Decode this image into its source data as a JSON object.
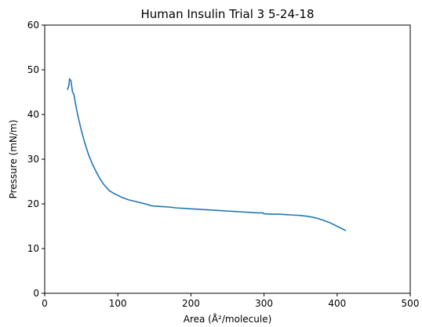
{
  "chart_data": {
    "type": "line",
    "title": "Human Insulin Trial 3 5-24-18",
    "xlabel": "Area (Å²/molecule)",
    "ylabel": "Pressure (mN/m)",
    "xlim": [
      0,
      500
    ],
    "ylim": [
      0,
      60
    ],
    "xticks": [
      0,
      100,
      200,
      300,
      400,
      500
    ],
    "yticks": [
      0,
      10,
      20,
      30,
      40,
      50,
      60
    ],
    "grid": false,
    "series": [
      {
        "color": "#1f77b4",
        "x": [
          412,
          400,
          390,
          380,
          370,
          360,
          350,
          340,
          330,
          320,
          310,
          300,
          298,
          290,
          280,
          270,
          260,
          250,
          240,
          230,
          220,
          210,
          200,
          190,
          180,
          170,
          160,
          150,
          145,
          142,
          135,
          125,
          115,
          105,
          95,
          88,
          80,
          75,
          70,
          65,
          60,
          55,
          50,
          45,
          42,
          40,
          38,
          36,
          34,
          33,
          31
        ],
        "y": [
          14.0,
          15.0,
          15.8,
          16.4,
          16.9,
          17.2,
          17.4,
          17.5,
          17.6,
          17.7,
          17.7,
          17.8,
          18.0,
          18.0,
          18.1,
          18.2,
          18.3,
          18.4,
          18.5,
          18.6,
          18.7,
          18.8,
          18.9,
          19.0,
          19.1,
          19.3,
          19.4,
          19.5,
          19.6,
          19.8,
          20.1,
          20.5,
          20.9,
          21.5,
          22.3,
          23.0,
          24.5,
          25.8,
          27.3,
          29.0,
          31.0,
          33.5,
          36.5,
          40.0,
          42.5,
          44.5,
          45.0,
          47.5,
          48.0,
          46.5,
          45.5
        ]
      }
    ]
  }
}
